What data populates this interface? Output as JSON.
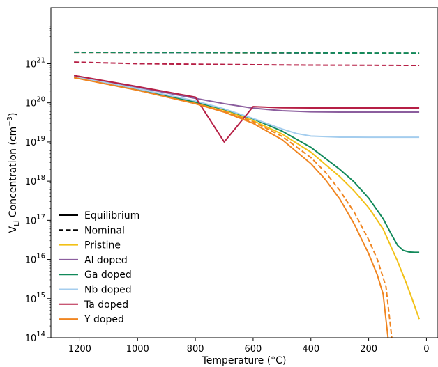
{
  "chart_data": {
    "type": "line",
    "xlabel": "Temperature (°C)",
    "ylabel_parts": {
      "pre": "V",
      "sub": "Li",
      "mid": " Concentration (cm",
      "sup": "−3",
      "post": ")"
    },
    "x_axis": {
      "inverted": true,
      "lim": [
        1300,
        -40
      ],
      "ticks": [
        1200,
        1000,
        800,
        600,
        400,
        200,
        0
      ]
    },
    "y_axis": {
      "scale": "log",
      "lim": [
        100000000000000.0,
        2.7e+22
      ],
      "ticks": [
        14,
        15,
        16,
        17,
        18,
        19,
        20,
        21
      ],
      "tick_base": "10"
    },
    "grid": false,
    "legend": {
      "placement": "lower-left",
      "style_entries": [
        {
          "label": "Equilibrium",
          "dash": "solid"
        },
        {
          "label": "Nominal",
          "dash": "dashed"
        }
      ]
    },
    "series": [
      {
        "name": "Pristine",
        "color": "#f2c117",
        "style": "solid",
        "x": [
          1220,
          1000,
          800,
          700,
          600,
          500,
          400,
          300,
          250,
          200,
          150,
          100,
          70,
          50,
          25
        ],
        "y": [
          4.7e+20,
          2.2e+20,
          1.02e+20,
          6.5e+19,
          3.5e+19,
          1.6e+19,
          5.5e+18,
          1.3e+18,
          5.6e+17,
          2.1e+17,
          6e+16,
          9000000000000000.0,
          2500000000000000.0,
          1000000000000000.0,
          300000000000000.0
        ]
      },
      {
        "name": "Pristine",
        "color": "#f2c117",
        "style": "dashed",
        "x": [
          1220,
          1000,
          800,
          600,
          400,
          200,
          25
        ],
        "y": [
          1.95e+21,
          1.93e+21,
          1.92e+21,
          1.9e+21,
          1.88e+21,
          1.86e+21,
          1.85e+21
        ]
      },
      {
        "name": "Al doped",
        "color": "#8b5e9e",
        "style": "solid",
        "x": [
          1220,
          1000,
          800,
          700,
          600,
          500,
          400,
          300,
          200,
          100,
          25
        ],
        "y": [
          4.9e+20,
          2.5e+20,
          1.3e+20,
          9.5e+19,
          7.3e+19,
          6.3e+19,
          5.9e+19,
          5.8e+19,
          5.8e+19,
          5.8e+19,
          5.8e+19
        ]
      },
      {
        "name": "Al doped",
        "color": "#8b5e9e",
        "style": "dashed",
        "x": [
          1220,
          1000,
          800,
          600,
          400,
          200,
          25
        ],
        "y": [
          1.95e+21,
          1.93e+21,
          1.92e+21,
          1.9e+21,
          1.88e+21,
          1.86e+21,
          1.85e+21
        ]
      },
      {
        "name": "Ga doped",
        "color": "#12895a",
        "style": "solid",
        "x": [
          1220,
          1000,
          800,
          700,
          600,
          500,
          400,
          300,
          250,
          200,
          150,
          120,
          100,
          80,
          60,
          40,
          25
        ],
        "y": [
          4.7e+20,
          2.2e+20,
          1.05e+20,
          6.8e+19,
          3.9e+19,
          1.9e+19,
          7.3e+18,
          2e+18,
          9.5e+17,
          3.7e+17,
          1.1e+17,
          4.2e+16,
          2.3e+16,
          1.7e+16,
          1.55e+16,
          1.52e+16,
          1.52e+16
        ]
      },
      {
        "name": "Ga doped",
        "color": "#12895a",
        "style": "dashed",
        "x": [
          1220,
          1000,
          800,
          600,
          400,
          200,
          25
        ],
        "y": [
          1.97e+21,
          1.95e+21,
          1.94e+21,
          1.92e+21,
          1.9e+21,
          1.88e+21,
          1.87e+21
        ]
      },
      {
        "name": "Nb doped",
        "color": "#a4cdee",
        "style": "solid",
        "x": [
          1220,
          1000,
          800,
          700,
          600,
          500,
          450,
          400,
          300,
          200,
          100,
          25
        ],
        "y": [
          4.7e+20,
          2.3e+20,
          1.12e+20,
          7e+19,
          4e+19,
          2.15e+19,
          1.65e+19,
          1.42e+19,
          1.33e+19,
          1.32e+19,
          1.32e+19,
          1.32e+19
        ]
      },
      {
        "name": "Ta doped",
        "color": "#b61f45",
        "style": "solid",
        "x": [
          1220,
          1000,
          800,
          700,
          600,
          500,
          400,
          300,
          200,
          100,
          25
        ],
        "y": [
          5e+20,
          2.6e+20,
          1.4e+20,
          1e+19,
          8e+19,
          7.5e+19,
          7.4e+19,
          7.4e+19,
          7.4e+19,
          7.4e+19,
          7.4e+19
        ]
      },
      {
        "name": "Ta doped",
        "color": "#b61f45",
        "style": "dashed",
        "x": [
          1220,
          1000,
          800,
          600,
          400,
          200,
          25
        ],
        "y": [
          1.1e+21,
          1e+21,
          9.7e+20,
          9.4e+20,
          9.2e+20,
          9.1e+20,
          9e+20
        ]
      },
      {
        "name": "Y doped",
        "color": "#f08520",
        "style": "solid",
        "x": [
          1220,
          1000,
          800,
          700,
          600,
          500,
          400,
          350,
          300,
          250,
          200,
          170,
          150,
          133
        ],
        "y": [
          4.4e+20,
          2.1e+20,
          9.5e+19,
          5.8e+19,
          3e+19,
          1.15e+19,
          2.8e+18,
          1.1e+18,
          3.5e+17,
          8e+16,
          1.4e+16,
          4000000000000000.0,
          1300000000000000.0,
          100000000000000.0
        ]
      },
      {
        "name": "Y doped",
        "color": "#f08520",
        "style": "dashed",
        "x": [
          1220,
          1000,
          800,
          700,
          600,
          500,
          400,
          350,
          300,
          250,
          200,
          170,
          140,
          120
        ],
        "y": [
          4.4e+20,
          2.1e+20,
          9.6e+19,
          6e+19,
          3.3e+19,
          1.4e+19,
          4e+18,
          1.7e+18,
          5.8e+17,
          1.6e+17,
          3.2e+16,
          1e+16,
          2000000000000000.0,
          100000000000000.0
        ]
      }
    ],
    "color_legend": [
      {
        "name": "Pristine",
        "color": "#f2c117"
      },
      {
        "name": "Al doped",
        "color": "#8b5e9e"
      },
      {
        "name": "Ga doped",
        "color": "#12895a"
      },
      {
        "name": "Nb doped",
        "color": "#a4cdee"
      },
      {
        "name": "Ta doped",
        "color": "#b61f45"
      },
      {
        "name": "Y doped",
        "color": "#f08520"
      }
    ]
  }
}
